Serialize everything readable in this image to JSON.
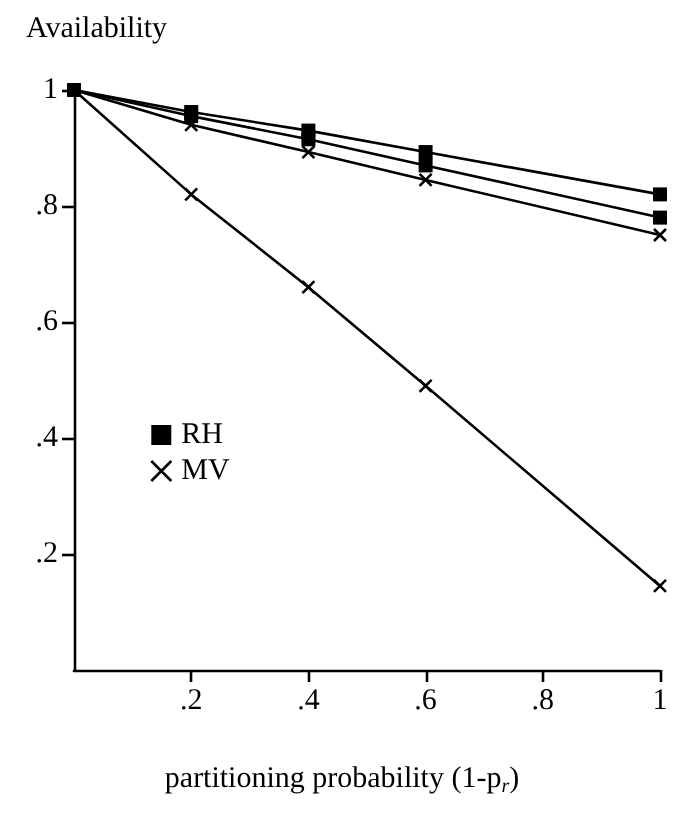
{
  "chart_data": {
    "type": "line",
    "ylabel": "Availability",
    "xlabel": "partitioning probability (1-p$_{r}$)",
    "xlim": [
      0,
      1
    ],
    "ylim": [
      0,
      1
    ],
    "xticks": [
      {
        "value": 0.2,
        "label": ".2"
      },
      {
        "value": 0.4,
        "label": ".4"
      },
      {
        "value": 0.6,
        "label": ".6"
      },
      {
        "value": 0.8,
        "label": ".8"
      },
      1
    ],
    "yticks": [
      {
        "value": 0.2,
        "label": ".2"
      },
      {
        "value": 0.4,
        "label": ".4"
      },
      {
        "value": 0.6,
        "label": ".6"
      },
      {
        "value": 0.8,
        "label": ".8"
      },
      1
    ],
    "x": [
      0,
      0.2,
      0.4,
      0.6,
      0.8,
      1
    ],
    "series": [
      {
        "name": "RH",
        "color": "#000000",
        "marker": "square",
        "values": [
          1,
          0.962,
          0.93,
          0.893,
          null,
          0.82
        ]
      },
      {
        "name": "MV",
        "color": "#000000",
        "marker": "cross",
        "values": [
          1,
          0.94,
          0.893,
          0.845,
          null,
          0.75
        ]
      },
      {
        "color": "#000000",
        "marker": "square",
        "values": [
          1,
          0.955,
          0.915,
          0.87,
          null,
          0.78
        ]
      },
      {
        "color": "#000000",
        "marker": "cross",
        "values": [
          1,
          0.82,
          0.66,
          0.49,
          null,
          0.145
        ]
      }
    ],
    "grid": false,
    "legend": "left",
    "line_style": "solid"
  }
}
